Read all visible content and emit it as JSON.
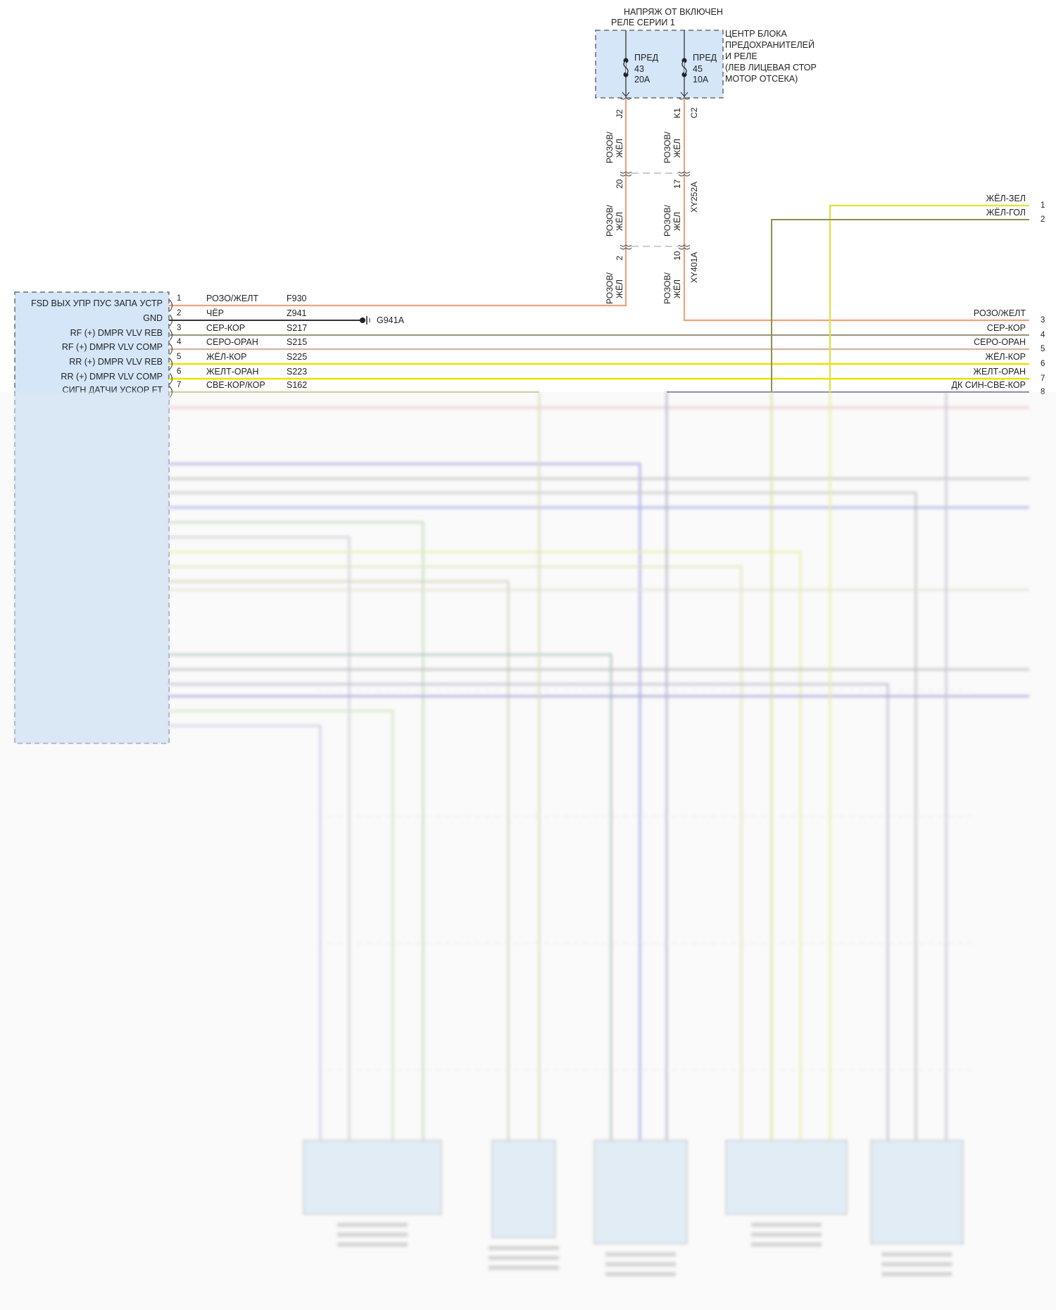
{
  "fuse_block": {
    "supply_label_line1": "НАПРЯЖ ОТ ВКЛЮЧЕН",
    "supply_label_line2": "РЕЛЕ СЕРИИ 1",
    "name_lines": [
      "ЦЕНТР БЛОКА",
      "ПРЕДОХРАНИТЕЛЕЙ",
      "И РЕЛЕ",
      "(ЛЕВ ЛИЦЕВАЯ СТОР",
      "МОТОР ОТСЕКА)"
    ],
    "fuses": [
      {
        "label": "ПРЕД",
        "number": "43",
        "rating": "20A",
        "pin": "J2"
      },
      {
        "label": "ПРЕД",
        "number": "45",
        "rating": "10A",
        "pin": "K1",
        "connector": "C2"
      }
    ]
  },
  "vertical_runs": {
    "left": [
      {
        "color_line1": "РОЗОВ/",
        "color_line2": "ЖЁЛ",
        "pin": "J2"
      },
      {
        "color_line1": "РОЗОВ/",
        "color_line2": "ЖЁЛ",
        "pin": "20"
      },
      {
        "color_line1": "РОЗОВ/",
        "color_line2": "ЖЁЛ",
        "pin": "2"
      }
    ],
    "right": [
      {
        "color_line1": "РОЗОВ/",
        "color_line2": "ЖЁЛ",
        "pin": "K1",
        "connector": "C2"
      },
      {
        "color_line1": "РОЗОВ/",
        "color_line2": "ЖЁЛ",
        "pin": "17",
        "connector": "XY252A"
      },
      {
        "color_line1": "РОЗОВ/",
        "color_line2": "ЖЁЛ",
        "pin": "10",
        "connector": "XY401A"
      }
    ]
  },
  "module": {
    "pins": [
      {
        "pin": "1",
        "function": "FSD ВЫХ УПР ПУС ЗАПА УСТР",
        "color": "РОЗО/ЖЕЛТ",
        "circuit": "F930"
      },
      {
        "pin": "2",
        "function": "GND",
        "color": "ЧЁР",
        "circuit": "Z941"
      },
      {
        "pin": "3",
        "function": "RF (+) DMPR VLV REB",
        "color": "СЕР-КОР",
        "circuit": "S217"
      },
      {
        "pin": "4",
        "function": "RF (+) DMPR VLV COMP",
        "color": "СЕРО-ОРАН",
        "circuit": "S215"
      },
      {
        "pin": "5",
        "function": "RR (+) DMPR VLV REB",
        "color": "ЖЁЛ-КОР",
        "circuit": "S225"
      },
      {
        "pin": "6",
        "function": "RR (+) DMPR VLV COMP",
        "color": "ЖЕЛТ-ОРАН",
        "circuit": "S223"
      },
      {
        "pin": "7",
        "function": "СИГН ДАТЧИ УСКОР FT",
        "color": "СВЕ-КОР/КОР",
        "circuit": "S162"
      }
    ]
  },
  "ground": {
    "label": "G941A"
  },
  "right_connector": {
    "pins": [
      {
        "pin": "1",
        "color": "ЖЁЛ-ЗЕЛ"
      },
      {
        "pin": "2",
        "color": "ЖЁЛ-ГОЛ"
      },
      {
        "pin": "3",
        "color": "РОЗО/ЖЕЛТ"
      },
      {
        "pin": "4",
        "color": "СЕР-КОР"
      },
      {
        "pin": "5",
        "color": "СЕРО-ОРАН"
      },
      {
        "pin": "6",
        "color": "ЖЁЛ-КОР"
      },
      {
        "pin": "7",
        "color": "ЖЕЛТ-ОРАН"
      },
      {
        "pin": "8",
        "color": "ДК СИН-СВЕ-КОР"
      }
    ]
  },
  "colors": {
    "pink_yellow": "#eea27e",
    "black": "#333333",
    "gray_brown": "#9c9a82",
    "gray_orange": "#d6b4a0",
    "yellow": "#ece000",
    "yellow_green": "#d6e63a",
    "yellow_blue": "#8f8f4a",
    "module_fill": "#d4e6f8",
    "blue": "#6b6bd8"
  }
}
